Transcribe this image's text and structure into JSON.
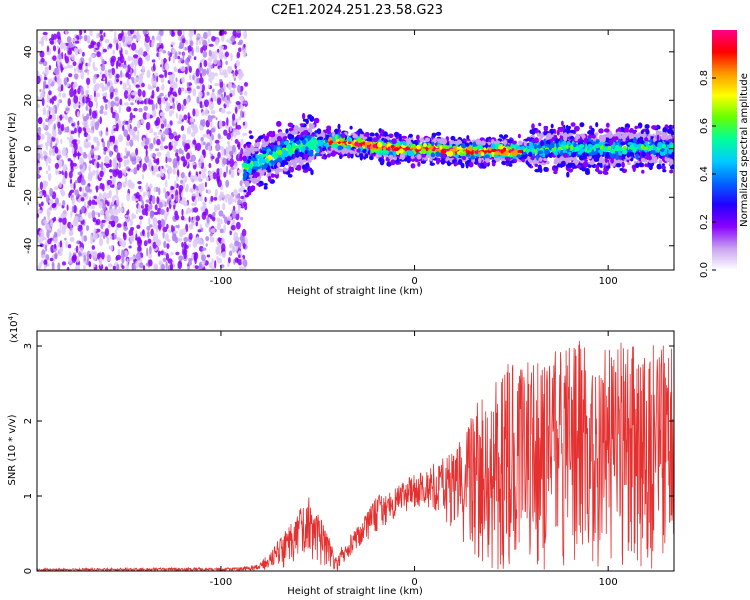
{
  "chart_data": [
    {
      "type": "heatmap",
      "title": "C2E1.2024.251.23.58.G23",
      "xlabel": "Height of straight line (km)",
      "ylabel": "Frequency (Hz)",
      "xlim": [
        -195,
        134
      ],
      "ylim": [
        -50,
        49
      ],
      "xticks": [
        -100,
        0,
        100
      ],
      "yticks": [
        -40,
        -20,
        0,
        20,
        40
      ],
      "colorbar": {
        "label": "Normalized spectral amplitude",
        "range": [
          0,
          1
        ],
        "ticks": [
          "0.0",
          "0.2",
          "0.4",
          "0.6",
          "0.8"
        ],
        "colors": [
          "#ffffff",
          "#c8a0f0",
          "#8800ff",
          "#2200ff",
          "#0066ff",
          "#00ccff",
          "#00ff99",
          "#66ff00",
          "#ffff00",
          "#ff9900",
          "#ff0000",
          "#ff0088"
        ]
      },
      "noise_region_end_km": -87,
      "ridge": {
        "x": [
          -88,
          -80,
          -70,
          -60,
          -50,
          -40,
          -30,
          -20,
          -10,
          0,
          10,
          20,
          30,
          40,
          50,
          60,
          70,
          80,
          90,
          100,
          110,
          120,
          134
        ],
        "y": [
          -8,
          -5,
          -2,
          1,
          2,
          3,
          2,
          1,
          0,
          0,
          0,
          -1,
          -1,
          -1,
          -1,
          -0.5,
          0,
          0.5,
          0,
          0,
          0,
          0.5,
          0
        ],
        "peak_amplitude_range_km": [
          -45,
          55
        ]
      }
    },
    {
      "type": "line",
      "xlabel": "Height of straight line (km)",
      "ylabel": "SNR (10 * v/v)",
      "scale_label": "(x10",
      "scale_exp": "4",
      "scale_close": ")",
      "xlim": [
        -195,
        134
      ],
      "ylim": [
        0,
        3.2
      ],
      "xticks": [
        -100,
        0,
        100
      ],
      "yticks": [
        0,
        1,
        2,
        3
      ],
      "series": [
        {
          "name": "SNR",
          "color": "#e53030",
          "envelope": {
            "x": [
              -195,
              -90,
              -80,
              -65,
              -55,
              -48,
              -40,
              -30,
              -20,
              -10,
              0,
              10,
              20,
              30,
              40,
              50,
              60,
              70,
              80,
              90,
              100,
              110,
              120,
              134
            ],
            "high": [
              0.03,
              0.05,
              0.1,
              0.6,
              1.0,
              0.75,
              0.25,
              0.6,
              1.0,
              1.1,
              1.3,
              1.45,
              1.6,
              2.1,
              2.8,
              2.8,
              2.8,
              2.9,
              3.2,
              3.0,
              3.0,
              3.1,
              3.05,
              3.0
            ],
            "low": [
              0.0,
              0.0,
              0.0,
              0.05,
              0.2,
              0.05,
              0.0,
              0.3,
              0.5,
              0.7,
              0.85,
              0.8,
              0.55,
              0.1,
              0.0,
              0.0,
              0.0,
              0.0,
              0.0,
              0.0,
              0.0,
              0.0,
              0.0,
              0.0
            ]
          }
        }
      ]
    }
  ]
}
